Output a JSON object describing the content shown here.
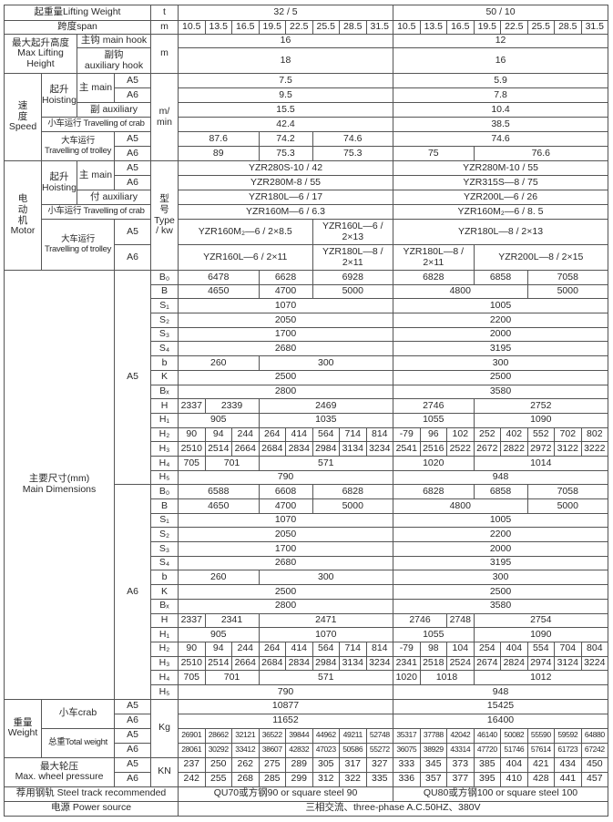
{
  "header": {
    "lifting_weight": "起重量Lifting Weight",
    "lifting_unit": "t",
    "groups": [
      {
        "v": "32 / 5",
        "cols": 8
      },
      {
        "v": "50 / 10",
        "cols": 8
      }
    ],
    "span_label": "跨度span",
    "span_unit": "m",
    "spans": [
      "10.5",
      "13.5",
      "16.5",
      "19.5",
      "22.5",
      "25.5",
      "28.5",
      "31.5",
      "10.5",
      "13.5",
      "16.5",
      "19.5",
      "22.5",
      "25.5",
      "28.5",
      "31.5"
    ]
  },
  "max_height": {
    "label": "最大起升高度\nMax Lifting\nHeight",
    "unit": "m",
    "main_hook": {
      "label": "主钩 main hook",
      "values": [
        {
          "v": "16",
          "cols": 8
        },
        {
          "v": "12",
          "cols": 8
        }
      ]
    },
    "aux_hook": {
      "label": "副钩\nauxiliary hook",
      "values": [
        {
          "v": "18",
          "cols": 8
        },
        {
          "v": "16",
          "cols": 8
        }
      ]
    }
  },
  "grades": {
    "a5": "A5",
    "a6": "A6"
  },
  "speed": {
    "label": "速\n度\nSpeed",
    "unit": "m/\nmin",
    "hoisting": "起升\nHoisting",
    "main": "主 main",
    "main_a5": [
      {
        "v": "7.5",
        "cols": 8
      },
      {
        "v": "5.9",
        "cols": 8
      }
    ],
    "main_a6": [
      {
        "v": "9.5",
        "cols": 8
      },
      {
        "v": "7.8",
        "cols": 8
      }
    ],
    "aux_label": "副 auxiliary",
    "aux": [
      {
        "v": "15.5",
        "cols": 8
      },
      {
        "v": "10.4",
        "cols": 8
      }
    ],
    "crab_label": "小车运行 Travelling of crab",
    "crab": [
      {
        "v": "42.4",
        "cols": 8
      },
      {
        "v": "38.5",
        "cols": 8
      }
    ],
    "trolley_label": "大车运行\nTravelling of trolley",
    "trolley_a5": [
      {
        "v": "87.6",
        "cols": 3
      },
      {
        "v": "74.2",
        "cols": 2
      },
      {
        "v": "74.6",
        "cols": 3
      },
      {
        "v": "74.6",
        "cols": 8
      }
    ],
    "trolley_a6": [
      {
        "v": "89",
        "cols": 3
      },
      {
        "v": "75.3",
        "cols": 2
      },
      {
        "v": "75.3",
        "cols": 3
      },
      {
        "v": "75",
        "cols": 3
      },
      {
        "v": "76.6",
        "cols": 5
      }
    ]
  },
  "motor": {
    "label": "电\n动\n机\nMotor",
    "unit": "型\n号\nType\n/ kw",
    "hoisting": "起升\nHoisting",
    "main": "主 main",
    "main_a5": [
      {
        "v": "YZR280S-10 / 42",
        "cols": 8
      },
      {
        "v": "YZR280M-10 / 55",
        "cols": 8
      }
    ],
    "main_a6": [
      {
        "v": "YZR280M-8 / 55",
        "cols": 8
      },
      {
        "v": "YZR315S—8 / 75",
        "cols": 8
      }
    ],
    "aux_label": "付 auxiliary",
    "aux": [
      {
        "v": "YZR180L—6 / 17",
        "cols": 8
      },
      {
        "v": "YZR200L—6 / 26",
        "cols": 8
      }
    ],
    "crab_label": "小车运行 Travelling of crab",
    "crab": [
      {
        "v": "YZR160M—6 / 6.3",
        "cols": 8
      },
      {
        "v": "YZR160M₂—6 / 8. 5",
        "cols": 8
      }
    ],
    "trolley_label": "大车运行\nTravelling of trolley",
    "trolley_a5": [
      {
        "v": "YZR160M₂—6 / 2×8.5",
        "cols": 5
      },
      {
        "v": "YZR160L—6 /\n2×13",
        "cols": 3
      },
      {
        "v": "YZR180L—8 / 2×13",
        "cols": 8
      }
    ],
    "trolley_a6": [
      {
        "v": "YZR160L—6 / 2×11",
        "cols": 5
      },
      {
        "v": "YZR180L—8 /\n2×11",
        "cols": 3
      },
      {
        "v": "YZR180L—8 /\n2×11",
        "cols": 3
      },
      {
        "v": "YZR200L—8 / 2×15",
        "cols": 5
      }
    ]
  },
  "dims": {
    "label": "主要尺寸(mm)\nMain Dimensions",
    "a5": [
      {
        "sym": "B₀",
        "values": [
          {
            "v": "6478",
            "cols": 3
          },
          {
            "v": "6628",
            "cols": 2
          },
          {
            "v": "6928",
            "cols": 3
          },
          {
            "v": "6828",
            "cols": 3
          },
          {
            "v": "6858",
            "cols": 2
          },
          {
            "v": "7058",
            "cols": 3
          }
        ]
      },
      {
        "sym": "B",
        "values": [
          {
            "v": "4650",
            "cols": 3
          },
          {
            "v": "4700",
            "cols": 2
          },
          {
            "v": "5000",
            "cols": 3
          },
          {
            "v": "4800",
            "cols": 5
          },
          {
            "v": "5000",
            "cols": 3
          }
        ]
      },
      {
        "sym": "S₁",
        "values": [
          {
            "v": "1070",
            "cols": 8
          },
          {
            "v": "1005",
            "cols": 8
          }
        ]
      },
      {
        "sym": "S₂",
        "values": [
          {
            "v": "2050",
            "cols": 8
          },
          {
            "v": "2200",
            "cols": 8
          }
        ]
      },
      {
        "sym": "S₃",
        "values": [
          {
            "v": "1700",
            "cols": 8
          },
          {
            "v": "2000",
            "cols": 8
          }
        ]
      },
      {
        "sym": "S₄",
        "values": [
          {
            "v": "2680",
            "cols": 8
          },
          {
            "v": "3195",
            "cols": 8
          }
        ]
      },
      {
        "sym": "b",
        "values": [
          {
            "v": "260",
            "cols": 3
          },
          {
            "v": "300",
            "cols": 5
          },
          {
            "v": "300",
            "cols": 8
          }
        ]
      },
      {
        "sym": "K",
        "values": [
          {
            "v": "2500",
            "cols": 8
          },
          {
            "v": "2500",
            "cols": 8
          }
        ]
      },
      {
        "sym": "Bₓ",
        "values": [
          {
            "v": "2800",
            "cols": 8
          },
          {
            "v": "3580",
            "cols": 8
          }
        ]
      },
      {
        "sym": "H",
        "values": [
          {
            "v": "2337",
            "cols": 1
          },
          {
            "v": "2339",
            "cols": 2
          },
          {
            "v": "2469",
            "cols": 5
          },
          {
            "v": "2746",
            "cols": 3
          },
          {
            "v": "2752",
            "cols": 5
          }
        ]
      },
      {
        "sym": "H₁",
        "values": [
          {
            "v": "905",
            "cols": 3
          },
          {
            "v": "1035",
            "cols": 5
          },
          {
            "v": "1055",
            "cols": 3
          },
          {
            "v": "1090",
            "cols": 5
          }
        ]
      },
      {
        "sym": "H₂",
        "values": [
          "90",
          "94",
          "244",
          "264",
          "414",
          "564",
          "714",
          "814",
          "-79",
          "96",
          "102",
          "252",
          "402",
          "552",
          "702",
          "802"
        ]
      },
      {
        "sym": "H₃",
        "values": [
          "2510",
          "2514",
          "2664",
          "2684",
          "2834",
          "2984",
          "3134",
          "3234",
          "2541",
          "2516",
          "2522",
          "2672",
          "2822",
          "2972",
          "3122",
          "3222"
        ]
      },
      {
        "sym": "H₄",
        "values": [
          {
            "v": "705",
            "cols": 1
          },
          {
            "v": "701",
            "cols": 2
          },
          {
            "v": "571",
            "cols": 5
          },
          {
            "v": "1020",
            "cols": 3
          },
          {
            "v": "1014",
            "cols": 5
          }
        ]
      },
      {
        "sym": "H₅",
        "values": [
          {
            "v": "790",
            "cols": 8
          },
          {
            "v": "948",
            "cols": 8
          }
        ]
      }
    ],
    "a6": [
      {
        "sym": "B₀",
        "values": [
          {
            "v": "6588",
            "cols": 3
          },
          {
            "v": "6608",
            "cols": 2
          },
          {
            "v": "6828",
            "cols": 3
          },
          {
            "v": "6828",
            "cols": 3
          },
          {
            "v": "6858",
            "cols": 2
          },
          {
            "v": "7058",
            "cols": 3
          }
        ]
      },
      {
        "sym": "B",
        "values": [
          {
            "v": "4650",
            "cols": 3
          },
          {
            "v": "4700",
            "cols": 2
          },
          {
            "v": "5000",
            "cols": 3
          },
          {
            "v": "4800",
            "cols": 5
          },
          {
            "v": "5000",
            "cols": 3
          }
        ]
      },
      {
        "sym": "S₁",
        "values": [
          {
            "v": "1070",
            "cols": 8
          },
          {
            "v": "1005",
            "cols": 8
          }
        ]
      },
      {
        "sym": "S₂",
        "values": [
          {
            "v": "2050",
            "cols": 8
          },
          {
            "v": "2200",
            "cols": 8
          }
        ]
      },
      {
        "sym": "S₃",
        "values": [
          {
            "v": "1700",
            "cols": 8
          },
          {
            "v": "2000",
            "cols": 8
          }
        ]
      },
      {
        "sym": "S₄",
        "values": [
          {
            "v": "2680",
            "cols": 8
          },
          {
            "v": "3195",
            "cols": 8
          }
        ]
      },
      {
        "sym": "b",
        "values": [
          {
            "v": "260",
            "cols": 3
          },
          {
            "v": "300",
            "cols": 5
          },
          {
            "v": "300",
            "cols": 8
          }
        ]
      },
      {
        "sym": "K",
        "values": [
          {
            "v": "2500",
            "cols": 8
          },
          {
            "v": "2500",
            "cols": 8
          }
        ]
      },
      {
        "sym": "Bₓ",
        "values": [
          {
            "v": "2800",
            "cols": 8
          },
          {
            "v": "3580",
            "cols": 8
          }
        ]
      },
      {
        "sym": "H",
        "values": [
          {
            "v": "2337",
            "cols": 1
          },
          {
            "v": "2341",
            "cols": 2
          },
          {
            "v": "2471",
            "cols": 5
          },
          {
            "v": "2746",
            "cols": 2
          },
          {
            "v": "2748",
            "cols": 1
          },
          {
            "v": "2754",
            "cols": 5
          }
        ]
      },
      {
        "sym": "H₁",
        "values": [
          {
            "v": "905",
            "cols": 3
          },
          {
            "v": "1070",
            "cols": 5
          },
          {
            "v": "1055",
            "cols": 3
          },
          {
            "v": "1090",
            "cols": 5
          }
        ]
      },
      {
        "sym": "H₂",
        "values": [
          "90",
          "94",
          "244",
          "264",
          "414",
          "564",
          "714",
          "814",
          "-79",
          "98",
          "104",
          "254",
          "404",
          "554",
          "704",
          "804"
        ]
      },
      {
        "sym": "H₃",
        "values": [
          "2510",
          "2514",
          "2664",
          "2684",
          "2834",
          "2984",
          "3134",
          "3234",
          "2341",
          "2518",
          "2524",
          "2674",
          "2824",
          "2974",
          "3124",
          "3224"
        ]
      },
      {
        "sym": "H₄",
        "values": [
          {
            "v": "705",
            "cols": 1
          },
          {
            "v": "701",
            "cols": 2
          },
          {
            "v": "571",
            "cols": 5
          },
          {
            "v": "1020",
            "cols": 1
          },
          {
            "v": "1018",
            "cols": 2
          },
          {
            "v": "1012",
            "cols": 5
          }
        ]
      },
      {
        "sym": "H₅",
        "values": [
          {
            "v": "790",
            "cols": 8
          },
          {
            "v": "948",
            "cols": 8
          }
        ]
      }
    ]
  },
  "weight": {
    "label": "重量\nWeight",
    "unit": "Kg",
    "crab_label": "小车crab",
    "crab_a5": [
      {
        "v": "10877",
        "cols": 8
      },
      {
        "v": "15425",
        "cols": 8
      }
    ],
    "crab_a6": [
      {
        "v": "11652",
        "cols": 8
      },
      {
        "v": "16400",
        "cols": 8
      }
    ],
    "total_label": "总重Total weight",
    "total_a5": [
      "26901",
      "28662",
      "32121",
      "36522",
      "39844",
      "44962",
      "49211",
      "52748",
      "35317",
      "37788",
      "42042",
      "46140",
      "50082",
      "55590",
      "59592",
      "64880"
    ],
    "total_a6": [
      "28061",
      "30292",
      "33412",
      "38607",
      "42832",
      "47023",
      "50586",
      "55272",
      "36075",
      "38929",
      "43314",
      "47720",
      "51746",
      "57614",
      "61723",
      "67242"
    ]
  },
  "wheel": {
    "label": "最大轮压\nMax.  wheel pressure",
    "unit": "KN",
    "a5": [
      "237",
      "250",
      "262",
      "275",
      "289",
      "305",
      "317",
      "327",
      "333",
      "345",
      "373",
      "385",
      "404",
      "421",
      "434",
      "450"
    ],
    "a6": [
      "242",
      "255",
      "268",
      "285",
      "299",
      "312",
      "322",
      "335",
      "336",
      "357",
      "377",
      "395",
      "410",
      "428",
      "441",
      "457"
    ]
  },
  "steel": {
    "label": "荐用钢轨 Steel track recommended",
    "values": [
      {
        "v": "QU70或方钢90 or square steel 90",
        "cols": 8
      },
      {
        "v": "QU80或方钢100 or square steel 100",
        "cols": 8
      }
    ]
  },
  "power": {
    "label": "电源 Power source",
    "values": [
      {
        "v": "三相交流、three-phase  A.C.50HZ、380V",
        "cols": 16
      }
    ]
  }
}
